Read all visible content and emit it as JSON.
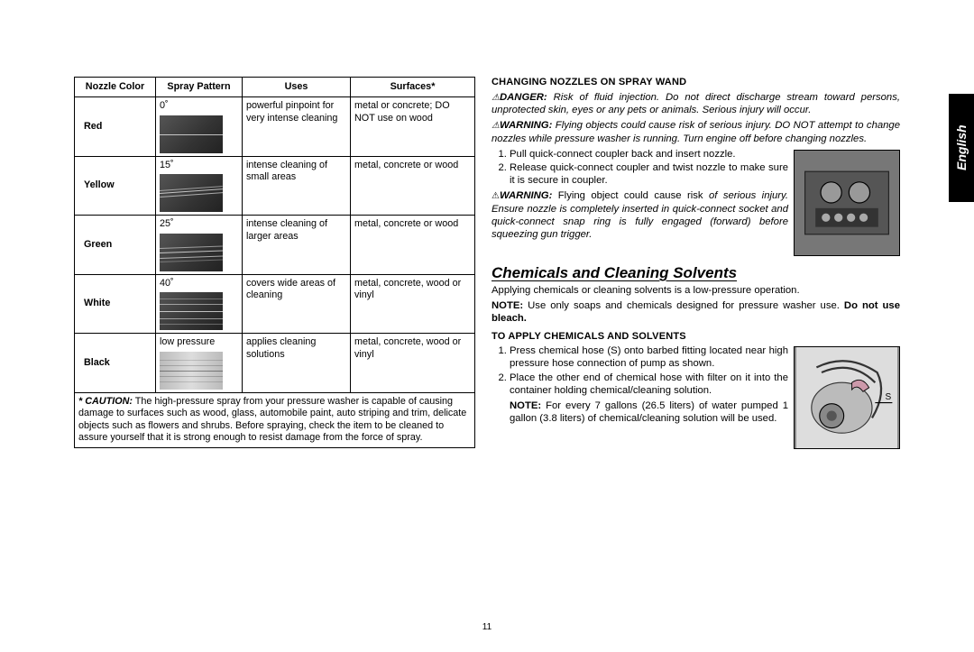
{
  "language_tab": "English",
  "page_number": "11",
  "table": {
    "headers": [
      "Nozzle Color",
      "Spray Pattern",
      "Uses",
      "Surfaces*"
    ],
    "col_widths": [
      "90px",
      "96px",
      "120px",
      "138px"
    ],
    "rows": [
      {
        "color": "Red",
        "angle": "0˚",
        "spray_class": "spray-0",
        "uses": "powerful pinpoint for very intense cleaning",
        "surfaces": "metal or concrete; DO NOT use on wood"
      },
      {
        "color": "Yellow",
        "angle": "15˚",
        "spray_class": "spray-15",
        "uses": "intense cleaning of small areas",
        "surfaces": "metal, concrete or wood"
      },
      {
        "color": "Green",
        "angle": "25˚",
        "spray_class": "spray-25",
        "uses": "intense cleaning of larger areas",
        "surfaces": "metal, concrete or wood"
      },
      {
        "color": "White",
        "angle": "40˚",
        "spray_class": "spray-40",
        "uses": "covers wide areas of cleaning",
        "surfaces": "metal, concrete, wood or vinyl"
      },
      {
        "color": "Black",
        "angle": "low pressure",
        "spray_class": "spray-low",
        "uses": "applies cleaning solutions",
        "surfaces": "metal, concrete, wood or vinyl"
      }
    ],
    "caution_label": "* CAUTION:",
    "caution_text": " The high-pressure spray from your pressure washer is capable of causing damage to surfaces such as wood, glass, automobile paint, auto striping and trim, delicate objects such as flowers and shrubs. Before spraying, check the item to be cleaned to assure yourself that it is strong enough to resist damage from the force of spray."
  },
  "right": {
    "h1": "CHANGING NOZZLES ON SPRAY WAND",
    "danger_label": "DANGER:",
    "danger_text": " Risk of fluid injection. Do not direct discharge stream toward persons, unprotected skin, eyes or any pets or animals. Serious injury will occur.",
    "warn1_label": "WARNING:",
    "warn1_text": " Flying objects could cause risk of serious injury. DO NOT attempt to change nozzles while pressure washer is running. Turn engine off before changing nozzles.",
    "steps1": [
      "Pull quick-connect coupler back and insert nozzle.",
      "Release quick-connect coupler and twist nozzle to make sure it is secure in coupler."
    ],
    "warn2_label": "WARNING:",
    "warn2_text_lead": " Flying object could cause risk",
    "warn2_text_tail": "of serious injury. Ensure nozzle is completely inserted in quick-connect socket and quick-connect snap ring is fully engaged (forward) before squeezing gun trigger.",
    "sec_head": "Chemicals and Cleaning Solvents",
    "chem_intro": "Applying chemicals or cleaning solvents is a low-pressure operation.",
    "note_label": "NOTE:",
    "chem_note": " Use only soaps and chemicals designed for pressure washer use. ",
    "no_bleach": "Do not use bleach.",
    "h2": "TO APPLY CHEMICALS AND SOLVENTS",
    "steps2": [
      "Press chemical hose (S) onto barbed fitting located near high pressure hose connection of pump as shown.",
      "Place the other end of chemical hose with filter on it into the container holding chemi­cal/cleaning solution."
    ],
    "note2_label": "NOTE:",
    "note2_text": " For every 7 gallons (26.5 liters) of water pumped 1 gallon (3.8 liters) of chemi­cal/cleaning solution will be used.",
    "fig2_label": "S"
  }
}
